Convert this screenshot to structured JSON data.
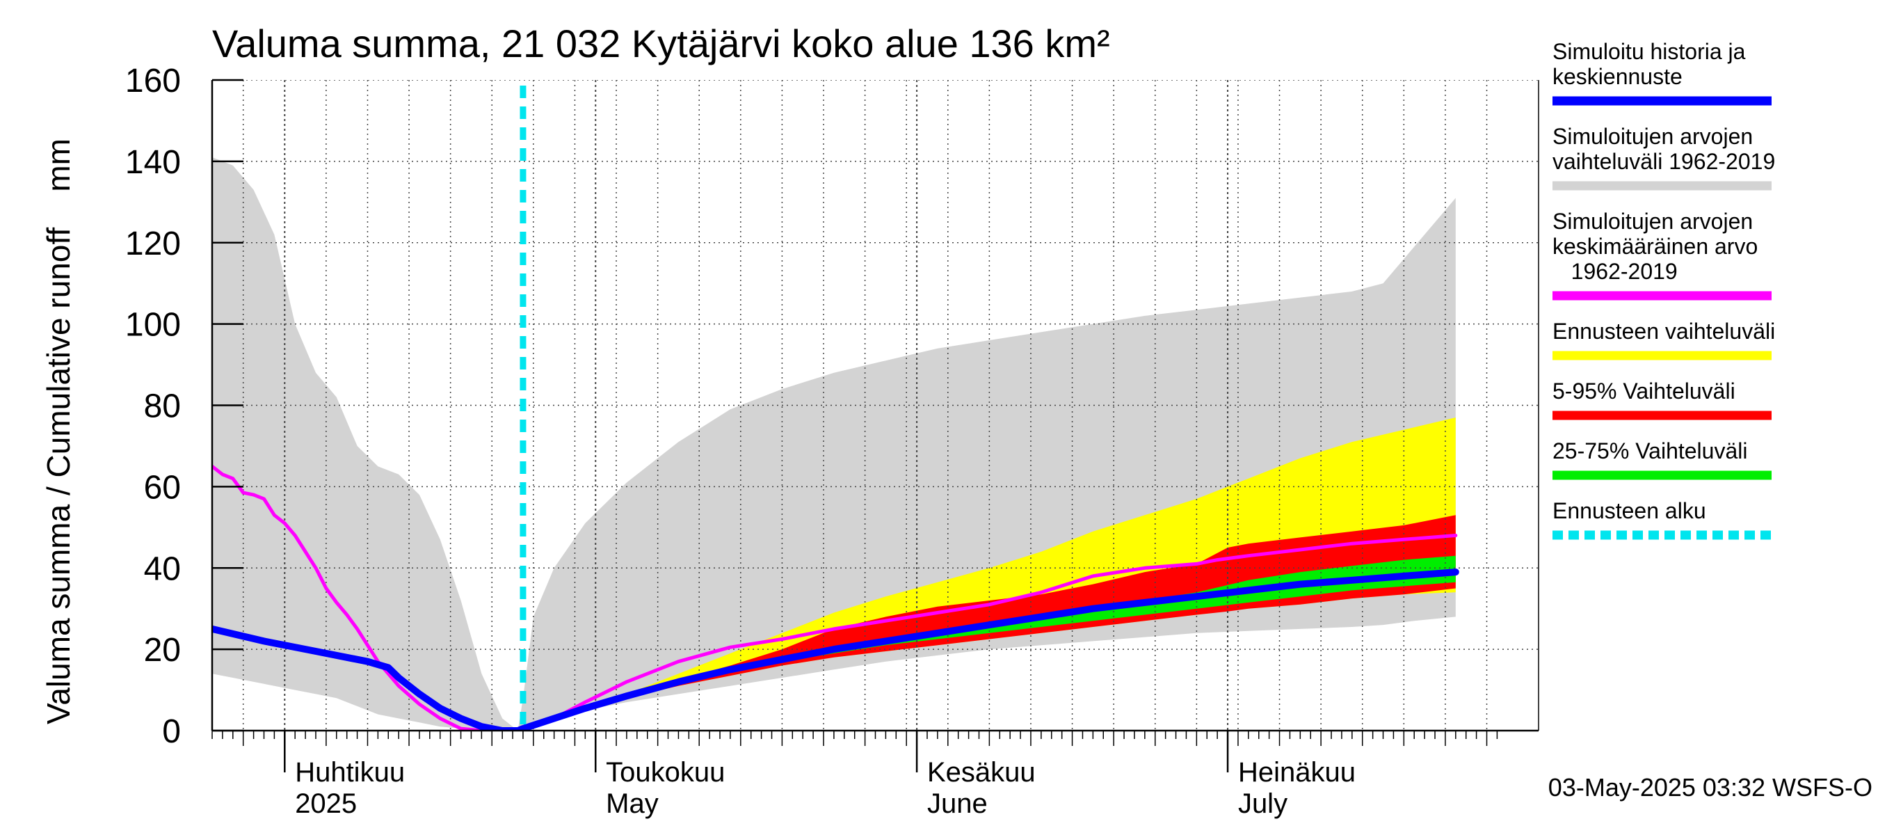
{
  "chart_data": {
    "type": "area",
    "title": "Valuma summa, 21 032 Kytäjärvi koko alue 136 km²",
    "ylabel": "Valuma summa / Cumulative runoff    mm",
    "ylim": [
      0,
      160
    ],
    "yticks": [
      0,
      20,
      40,
      60,
      80,
      100,
      120,
      140,
      160
    ],
    "xlim": [
      "2025-03-25",
      "2025-07-31"
    ],
    "month_labels": [
      {
        "fi": "Huhtikuu",
        "en": "2025",
        "day": 8
      },
      {
        "fi": "Toukokuu",
        "en": "May",
        "day": 38
      },
      {
        "fi": "Kesäkuu",
        "en": "June",
        "day": 69
      },
      {
        "fi": "Heinäkuu",
        "en": "July",
        "day": 99
      }
    ],
    "month_start_days": [
      7,
      37,
      68,
      98
    ],
    "forecast_start_day": 30,
    "day_axis_note": "x values are days since 2025-03-25",
    "series": [
      {
        "name": "Simuloitujen arvojen vaihteluväli 1962-2019",
        "kind": "band",
        "color": "#d3d3d3",
        "x": [
          0,
          2,
          4,
          6,
          8,
          10,
          12,
          14,
          16,
          18,
          20,
          22,
          24,
          26,
          28,
          29.5,
          30,
          31,
          33,
          36,
          40,
          45,
          50,
          55,
          60,
          65,
          70,
          75,
          80,
          85,
          90,
          95,
          100,
          105,
          110,
          113,
          116,
          120
        ],
        "upper": [
          141,
          139,
          133,
          122,
          100,
          88,
          82,
          70,
          65,
          63,
          58,
          47,
          32,
          14,
          3,
          0,
          8,
          28,
          40,
          51,
          61,
          71,
          79,
          84,
          88,
          91,
          94,
          96,
          98,
          100,
          102,
          103.5,
          105,
          106.5,
          108,
          110,
          119,
          131
        ],
        "lower": [
          14,
          13,
          12,
          11,
          10,
          9,
          8,
          6,
          4,
          3,
          2,
          1,
          0.5,
          0,
          0,
          0,
          1,
          2,
          3,
          5,
          7,
          9,
          11,
          13,
          15,
          17,
          18.5,
          20,
          21,
          22,
          23,
          24,
          24.5,
          25,
          25.5,
          26,
          27,
          28
        ]
      },
      {
        "name": "Ennusteen vaihteluväli",
        "kind": "band",
        "color": "#ffff00",
        "x": [
          30,
          33,
          36,
          40,
          45,
          50,
          55,
          60,
          65,
          70,
          75,
          80,
          85,
          90,
          95,
          100,
          105,
          110,
          115,
          120
        ],
        "upper": [
          0,
          2,
          5,
          9,
          14,
          19,
          24,
          29,
          33,
          36.5,
          40,
          44,
          49,
          53,
          57,
          62,
          67,
          71,
          74,
          77
        ],
        "lower": [
          0,
          2,
          5,
          8,
          11,
          13.5,
          16,
          18,
          19.5,
          21,
          22.5,
          24,
          25.5,
          27,
          28.5,
          30,
          31,
          32.5,
          33.5,
          34
        ]
      },
      {
        "name": "5-95% Vaihteluväli",
        "kind": "band",
        "color": "#ff0000",
        "x": [
          30,
          33,
          36,
          40,
          45,
          50,
          55,
          60,
          65,
          70,
          75,
          80,
          85,
          90,
          95,
          98,
          100,
          105,
          110,
          115,
          120
        ],
        "upper": [
          0,
          2,
          5,
          9,
          12.5,
          16,
          20,
          25,
          28,
          30.5,
          32,
          33.5,
          36,
          39,
          41,
          45,
          46,
          47.5,
          49,
          50.5,
          53
        ],
        "lower": [
          0,
          2,
          5,
          8,
          11,
          13.5,
          16,
          18,
          19.5,
          21,
          22.5,
          24,
          25.5,
          27,
          28.5,
          29.3,
          30,
          31,
          32.5,
          33.5,
          35
        ]
      },
      {
        "name": "25-75% Vaihteluväli",
        "kind": "band",
        "color": "#00ee00",
        "x": [
          30,
          33,
          36,
          40,
          45,
          50,
          55,
          60,
          65,
          70,
          75,
          80,
          85,
          90,
          95,
          100,
          105,
          110,
          115,
          120
        ],
        "upper": [
          0,
          2,
          5,
          8.5,
          12,
          15,
          18,
          20.5,
          22.5,
          24,
          26,
          28,
          30,
          32,
          34,
          37,
          39,
          40.5,
          42,
          43
        ],
        "lower": [
          0,
          2,
          5,
          8,
          11.5,
          14.5,
          17,
          19,
          21,
          22.5,
          24,
          25.5,
          27,
          28.5,
          30,
          31.5,
          33,
          34.5,
          35.5,
          36.5
        ]
      },
      {
        "name": "Simuloitujen arvojen keskimääräinen arvo 1962-2019",
        "kind": "line",
        "color": "#ff00ff",
        "x": [
          0,
          1,
          2,
          3,
          4,
          5,
          6,
          7,
          8,
          9,
          10,
          11,
          12,
          13,
          14,
          15,
          16,
          17,
          18,
          20,
          22,
          24,
          26,
          28,
          30,
          33,
          36,
          40,
          45,
          50,
          55,
          60,
          65,
          70,
          75,
          80,
          85,
          90,
          95,
          97,
          100,
          105,
          110,
          115,
          120
        ],
        "values": [
          65,
          63,
          62,
          58.5,
          58,
          57,
          53,
          51,
          48,
          44,
          40,
          35,
          31.5,
          28.5,
          25,
          21,
          17,
          14,
          11,
          6.5,
          3,
          0.5,
          0,
          0,
          0,
          3,
          7,
          12,
          17,
          20.5,
          22.5,
          25,
          27,
          29,
          31,
          34,
          38,
          40,
          41,
          42,
          43,
          44.5,
          46,
          47,
          48
        ]
      },
      {
        "name": "Simuloitu historia ja keskiennuste",
        "kind": "line",
        "color": "#0000ff",
        "x": [
          0,
          5,
          10,
          15,
          17,
          18,
          20,
          22,
          24,
          26,
          28,
          29.5,
          30,
          33,
          36,
          40,
          45,
          50,
          55,
          60,
          65,
          70,
          75,
          80,
          85,
          90,
          95,
          100,
          105,
          110,
          115,
          120
        ],
        "values": [
          25,
          22,
          19.5,
          17,
          15.5,
          13,
          9,
          5.5,
          3,
          1,
          0,
          0,
          0.5,
          3,
          5.5,
          8.5,
          12,
          15,
          17.5,
          20,
          22,
          24,
          26,
          28,
          30,
          31.5,
          33,
          34.5,
          36,
          37,
          38,
          39
        ]
      }
    ],
    "legend": {
      "placement": "right",
      "entries": [
        {
          "label": "Simuloitu historia ja keskiennuste",
          "lines": [
            "Simuloitu historia ja",
            "keskiennuste"
          ],
          "color": "#0000ff",
          "style": "solid"
        },
        {
          "label": "Simuloitujen arvojen vaihteluväli 1962-2019",
          "lines": [
            "Simuloitujen arvojen",
            "vaihteluväli 1962-2019"
          ],
          "color": "#d3d3d3",
          "style": "solid"
        },
        {
          "label": "Simuloitujen arvojen keskimääräinen arvo 1962-2019",
          "lines": [
            "Simuloitujen arvojen",
            "keskimääräinen arvo",
            "   1962-2019"
          ],
          "color": "#ff00ff",
          "style": "solid"
        },
        {
          "label": "Ennusteen vaihteluväli",
          "lines": [
            "Ennusteen vaihteluväli"
          ],
          "color": "#ffff00",
          "style": "solid"
        },
        {
          "label": "5-95% Vaihteluväli",
          "lines": [
            "5-95% Vaihteluväli"
          ],
          "color": "#ff0000",
          "style": "solid"
        },
        {
          "label": "25-75% Vaihteluväli",
          "lines": [
            "25-75% Vaihteluväli"
          ],
          "color": "#00ee00",
          "style": "solid"
        },
        {
          "label": "Ennusteen alku",
          "lines": [
            "Ennusteen alku"
          ],
          "color": "#00e5ee",
          "style": "dashed"
        }
      ]
    },
    "footer": "03-May-2025 03:32 WSFS-O"
  }
}
